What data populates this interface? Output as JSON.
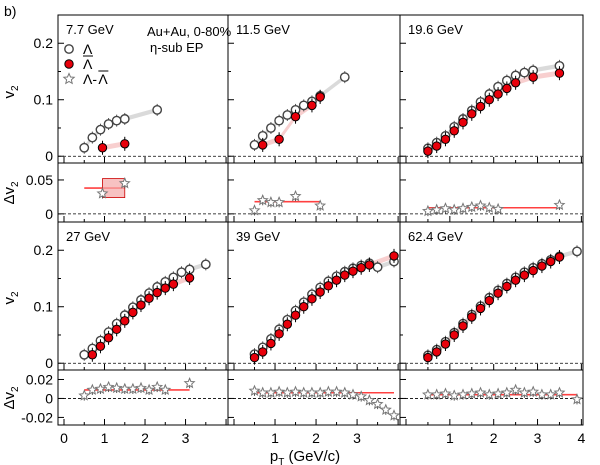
{
  "figure_label": "b)",
  "x_axis_label_main": "p",
  "x_axis_label_sub": "T",
  "x_axis_label_unit": " (GeV/c)",
  "x_ticks": [
    "0",
    "1",
    "2",
    "3",
    "4"
  ],
  "ylabel_v2_main": "v",
  "ylabel_v2_sub": "2",
  "ylabel_dv2_prefix": "Δv",
  "ylabel_dv2_sub": "2",
  "v2_ticks": [
    "0",
    "0.1",
    "0.2"
  ],
  "dv2_ticks_top": [
    "0",
    "0.05"
  ],
  "dv2_ticks_bottom": [
    "-0.02",
    "0",
    "0.02"
  ],
  "legend": {
    "system": "Au+Au,  0-80%",
    "method": "η-sub EP",
    "lambda": "Λ",
    "antilambda": "Λ",
    "difference_a": "Λ-",
    "difference_b": "Λ"
  },
  "energies": [
    "7.7 GeV",
    "11.5 GeV",
    "19.6 GeV",
    "27 GeV",
    "39 GeV",
    "62.4 GeV"
  ],
  "colors": {
    "antilambda": "#e8000b",
    "antilambda_band": "#f3a8a8",
    "lambda_band": "#bbbbbb",
    "fit_line": "#ff4040"
  },
  "chart_data": {
    "type": "scatter",
    "xlabel": "pT (GeV/c)",
    "xlim": [
      0,
      4
    ],
    "v2_ylim": [
      -0.012,
      0.25
    ],
    "dv2_ylim_top_row": [
      -0.012,
      0.075
    ],
    "dv2_ylim_bottom_row": [
      -0.028,
      0.03
    ],
    "panels": [
      {
        "energy": "7.7 GeV",
        "lambda_x": [
          0.5,
          0.7,
          0.9,
          1.1,
          1.3,
          1.5,
          2.3
        ],
        "lambda_y": [
          0.015,
          0.033,
          0.047,
          0.057,
          0.063,
          0.066,
          0.082
        ],
        "antilambda_x": [
          0.95,
          1.5
        ],
        "antilambda_y": [
          0.015,
          0.022
        ],
        "diff_x": [
          0.95,
          1.5
        ],
        "diff_y": [
          0.03,
          0.045
        ],
        "fit": 0.038
      },
      {
        "energy": "11.5 GeV",
        "lambda_x": [
          0.5,
          0.7,
          0.9,
          1.1,
          1.3,
          1.5,
          1.7,
          1.9,
          2.1,
          2.7
        ],
        "lambda_y": [
          0.02,
          0.036,
          0.05,
          0.063,
          0.073,
          0.082,
          0.09,
          0.097,
          0.107,
          0.14
        ],
        "antilambda_x": [
          0.7,
          1.1,
          1.5,
          1.9,
          2.1
        ],
        "antilambda_y": [
          0.02,
          0.03,
          0.07,
          0.09,
          0.105
        ],
        "diff_x": [
          0.5,
          0.7,
          0.9,
          1.1,
          1.5,
          2.1
        ],
        "diff_y": [
          0.005,
          0.02,
          0.017,
          0.017,
          0.026,
          0.012
        ],
        "fit": 0.018
      },
      {
        "energy": "19.6 GeV",
        "lambda_x": [
          0.5,
          0.7,
          0.9,
          1.1,
          1.3,
          1.5,
          1.7,
          1.9,
          2.1,
          2.3,
          2.5,
          2.7,
          2.9,
          3.5
        ],
        "lambda_y": [
          0.014,
          0.024,
          0.036,
          0.052,
          0.066,
          0.081,
          0.096,
          0.11,
          0.123,
          0.134,
          0.143,
          0.148,
          0.152,
          0.16
        ],
        "antilambda_x": [
          0.5,
          0.7,
          0.9,
          1.1,
          1.3,
          1.5,
          1.7,
          1.9,
          2.1,
          2.3,
          2.5,
          2.9,
          3.5
        ],
        "antilambda_y": [
          0.009,
          0.018,
          0.03,
          0.045,
          0.06,
          0.075,
          0.088,
          0.1,
          0.11,
          0.12,
          0.13,
          0.14,
          0.147
        ],
        "diff_x": [
          0.5,
          0.7,
          0.9,
          1.1,
          1.3,
          1.5,
          1.7,
          1.9,
          2.1,
          3.5
        ],
        "diff_y": [
          0.004,
          0.006,
          0.008,
          0.006,
          0.008,
          0.01,
          0.012,
          0.009,
          0.007,
          0.013
        ],
        "fit": 0.009
      },
      {
        "energy": "27 GeV",
        "lambda_x": [
          0.5,
          0.7,
          0.9,
          1.1,
          1.3,
          1.5,
          1.7,
          1.9,
          2.1,
          2.3,
          2.5,
          2.7,
          2.9,
          3.1,
          3.5
        ],
        "lambda_y": [
          0.015,
          0.026,
          0.04,
          0.055,
          0.07,
          0.085,
          0.099,
          0.112,
          0.124,
          0.135,
          0.144,
          0.152,
          0.161,
          0.166,
          0.175
        ],
        "antilambda_x": [
          0.7,
          0.9,
          1.1,
          1.3,
          1.5,
          1.7,
          1.9,
          2.1,
          2.3,
          2.5,
          2.7,
          3.1
        ],
        "antilambda_y": [
          0.015,
          0.03,
          0.045,
          0.06,
          0.075,
          0.09,
          0.103,
          0.115,
          0.125,
          0.133,
          0.14,
          0.151
        ],
        "diff_x": [
          0.5,
          0.7,
          0.9,
          1.1,
          1.3,
          1.5,
          1.7,
          1.9,
          2.1,
          2.3,
          2.5,
          3.1
        ],
        "diff_y": [
          0.003,
          0.009,
          0.01,
          0.012,
          0.011,
          0.01,
          0.01,
          0.011,
          0.009,
          0.012,
          0.009,
          0.016
        ],
        "fit": 0.009
      },
      {
        "energy": "39 GeV",
        "lambda_x": [
          0.5,
          0.7,
          0.9,
          1.1,
          1.3,
          1.5,
          1.7,
          1.9,
          2.1,
          2.3,
          2.5,
          2.7,
          2.9,
          3.1,
          3.3,
          3.5,
          3.9
        ],
        "lambda_y": [
          0.016,
          0.028,
          0.043,
          0.06,
          0.077,
          0.093,
          0.108,
          0.122,
          0.134,
          0.145,
          0.154,
          0.162,
          0.168,
          0.173,
          0.177,
          0.17,
          0.18
        ],
        "antilambda_x": [
          0.5,
          0.7,
          0.9,
          1.1,
          1.3,
          1.5,
          1.7,
          1.9,
          2.1,
          2.3,
          2.5,
          2.7,
          2.9,
          3.1,
          3.3,
          3.9
        ],
        "antilambda_y": [
          0.01,
          0.02,
          0.035,
          0.052,
          0.069,
          0.085,
          0.1,
          0.114,
          0.126,
          0.137,
          0.147,
          0.156,
          0.163,
          0.169,
          0.174,
          0.19
        ],
        "diff_x": [
          0.5,
          0.7,
          0.9,
          1.1,
          1.3,
          1.5,
          1.7,
          1.9,
          2.1,
          2.3,
          2.5,
          2.7,
          2.9,
          3.1,
          3.3,
          3.5,
          3.7,
          3.9
        ],
        "diff_y": [
          0.008,
          0.006,
          0.006,
          0.007,
          0.006,
          0.007,
          0.006,
          0.006,
          0.006,
          0.007,
          0.007,
          0.006,
          0.004,
          0.002,
          -0.002,
          -0.006,
          -0.012,
          -0.018
        ],
        "fit": 0.006
      },
      {
        "energy": "62.4 GeV",
        "lambda_x": [
          0.5,
          0.7,
          0.9,
          1.1,
          1.3,
          1.5,
          1.7,
          1.9,
          2.1,
          2.3,
          2.5,
          2.7,
          2.9,
          3.1,
          3.3,
          3.5,
          3.9
        ],
        "lambda_y": [
          0.014,
          0.024,
          0.038,
          0.054,
          0.07,
          0.086,
          0.101,
          0.116,
          0.129,
          0.141,
          0.152,
          0.161,
          0.169,
          0.176,
          0.183,
          0.189,
          0.198
        ],
        "antilambda_x": [
          0.5,
          0.7,
          0.9,
          1.1,
          1.3,
          1.5,
          1.7,
          1.9,
          2.1,
          2.3,
          2.5,
          2.7,
          2.9,
          3.1,
          3.3,
          3.5
        ],
        "antilambda_y": [
          0.01,
          0.02,
          0.034,
          0.05,
          0.066,
          0.082,
          0.097,
          0.111,
          0.124,
          0.136,
          0.147,
          0.156,
          0.164,
          0.172,
          0.18,
          0.188
        ],
        "diff_x": [
          0.5,
          0.7,
          0.9,
          1.1,
          1.3,
          1.5,
          1.7,
          1.9,
          2.1,
          2.3,
          2.5,
          2.7,
          2.9,
          3.1,
          3.3,
          3.5,
          3.9
        ],
        "diff_y": [
          0.004,
          0.004,
          0.005,
          0.003,
          0.004,
          0.005,
          0.006,
          0.004,
          0.005,
          0.006,
          0.009,
          0.006,
          0.007,
          0.004,
          0.004,
          0.006,
          -0.001
        ],
        "fit": 0.004
      }
    ]
  }
}
